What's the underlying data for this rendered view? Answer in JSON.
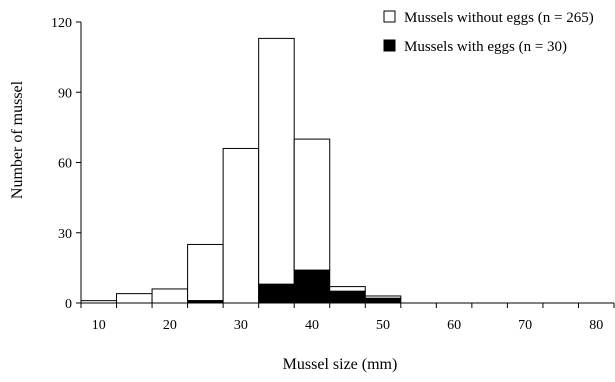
{
  "chart_data": {
    "type": "bar",
    "stacked": true,
    "xlabel": "Mussel size (mm)",
    "ylabel": "Number of mussel",
    "ylim": [
      0,
      120
    ],
    "yticks": [
      0,
      30,
      60,
      90,
      120
    ],
    "xlim": [
      7.5,
      82.5
    ],
    "xticks": [
      10,
      20,
      30,
      40,
      50,
      60,
      70,
      80
    ],
    "bin_width": 5,
    "bins": [
      10,
      15,
      20,
      25,
      30,
      35,
      40,
      45,
      50
    ],
    "series": [
      {
        "name": "Mussels without eggs (n = 265)",
        "color": "#ffffff",
        "values": [
          1,
          4,
          6,
          24,
          66,
          105,
          56,
          2,
          1
        ]
      },
      {
        "name": "Mussels with eggs (n = 30)",
        "color": "#000000",
        "values": [
          0,
          0,
          0,
          1,
          0,
          8,
          14,
          5,
          2
        ]
      }
    ],
    "legend_position": "top-right",
    "grid": false
  }
}
